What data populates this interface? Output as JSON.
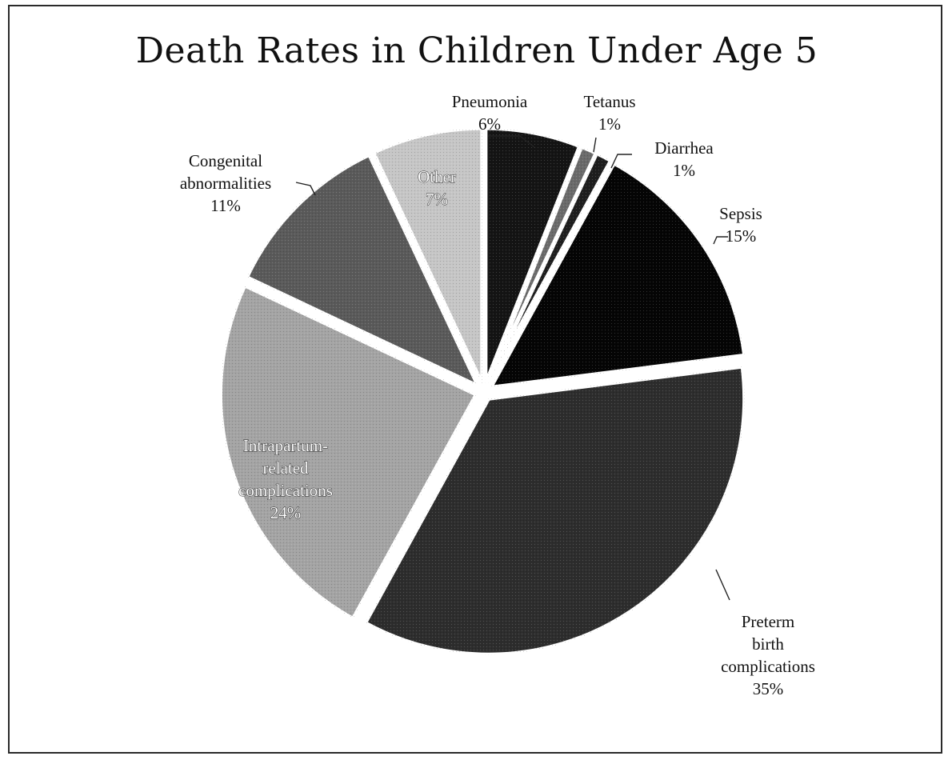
{
  "chart_data": {
    "type": "pie",
    "title": "Death Rates in Children Under Age 5",
    "slices": [
      {
        "label": "Pneumonia",
        "value": 6,
        "display": "6%",
        "color": "#141414"
      },
      {
        "label": "Tetanus",
        "value": 1,
        "display": "1%",
        "color": "#6a6a6a"
      },
      {
        "label": "Diarrhea",
        "value": 1,
        "display": "1%",
        "color": "#1e1e1e"
      },
      {
        "label": "Sepsis",
        "value": 15,
        "display": "15%",
        "color": "#050505"
      },
      {
        "label": "Preterm birth complications",
        "value": 35,
        "display": "35%",
        "color": "#2d2d2d"
      },
      {
        "label": "Intrapartum-related complications",
        "value": 24,
        "display": "24%",
        "color": "#a4a4a4"
      },
      {
        "label": "Congenital abnormalities",
        "value": 11,
        "display": "11%",
        "color": "#5a5a5a"
      },
      {
        "label": "Other",
        "value": 7,
        "display": "7%",
        "color": "#c6c6c6"
      }
    ],
    "label_lines": [
      [
        "Pneumonia",
        "6%"
      ],
      [
        "Tetanus",
        "1%"
      ],
      [
        "Diarrhea",
        "1%"
      ],
      [
        "Sepsis",
        "15%"
      ],
      [
        "Preterm",
        "birth",
        "complications",
        "35%"
      ],
      [
        "Intrapartum-",
        "related",
        "complications",
        "24%"
      ],
      [
        "Congenital",
        "abnormalities",
        "11%"
      ],
      [
        "Other",
        "7%"
      ]
    ]
  }
}
